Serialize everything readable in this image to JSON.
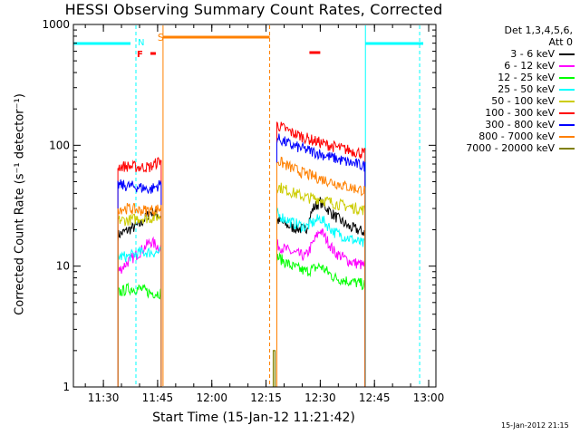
{
  "chart_data": {
    "type": "line",
    "title": "HESSI Observing Summary Count Rates, Corrected",
    "xlabel": "Start Time (15-Jan-12 11:21:42)",
    "ylabel": "Corrected Count Rate (s⁻¹ detector⁻¹)",
    "y_scale": "log",
    "ylim": [
      1,
      1000
    ],
    "y_ticks": [
      {
        "value": 1,
        "label": "1"
      },
      {
        "value": 10,
        "label": "10"
      },
      {
        "value": 100,
        "label": "100"
      },
      {
        "value": 1000,
        "label": "1000"
      }
    ],
    "xlim": [
      "11:21:42",
      "13:02:00"
    ],
    "x_ticks": [
      {
        "value": "11:30",
        "label": "11:30"
      },
      {
        "value": "11:45",
        "label": "11:45"
      },
      {
        "value": "12:00",
        "label": "12:00"
      },
      {
        "value": "12:15",
        "label": "12:15"
      },
      {
        "value": "12:30",
        "label": "12:30"
      },
      {
        "value": "12:45",
        "label": "12:45"
      },
      {
        "value": "13:00",
        "label": "13:00"
      }
    ],
    "legend": {
      "placement": "right",
      "header": [
        "Det 1,3,4,5,6,",
        "Att 0"
      ]
    },
    "series": [
      {
        "name": "3 - 6 keV",
        "color": "#000000",
        "segments": [
          {
            "x": [
              "11:34:00",
              "11:37:00",
              "11:40:00",
              "11:43:00",
              "11:46:00"
            ],
            "y": [
              18,
              20,
              22,
              28,
              26
            ]
          },
          {
            "x": [
              "12:18:00",
              "12:22:00",
              "12:26:00",
              "12:28:00",
              "12:30:00",
              "12:34:00",
              "12:38:00",
              "12:42:30"
            ],
            "y": [
              24,
              21,
              20,
              30,
              34,
              26,
              21,
              19
            ]
          }
        ]
      },
      {
        "name": "6 - 12 keV",
        "color": "#ff00ff",
        "segments": [
          {
            "x": [
              "11:34:00",
              "11:37:00",
              "11:40:00",
              "11:43:00",
              "11:46:00"
            ],
            "y": [
              9,
              11,
              13,
              16,
              14
            ]
          },
          {
            "x": [
              "12:18:00",
              "12:22:00",
              "12:26:00",
              "12:30:00",
              "12:34:00",
              "12:38:00",
              "12:42:30"
            ],
            "y": [
              15,
              13,
              12,
              20,
              13,
              11,
              10
            ]
          }
        ]
      },
      {
        "name": "12 - 25 keV",
        "color": "#00ff00",
        "segments": [
          {
            "x": [
              "11:34:00",
              "11:37:00",
              "11:40:00",
              "11:43:00",
              "11:46:00"
            ],
            "y": [
              6,
              6.5,
              6.5,
              6,
              6
            ]
          },
          {
            "x": [
              "12:18:00",
              "12:22:00",
              "12:26:00",
              "12:30:00",
              "12:34:00",
              "12:38:00",
              "12:42:30"
            ],
            "y": [
              12,
              10,
              9,
              10,
              8,
              7.5,
              7
            ]
          }
        ]
      },
      {
        "name": "25 - 50 keV",
        "color": "#00ffff",
        "segments": [
          {
            "x": [
              "11:34:00",
              "11:37:00",
              "11:40:00",
              "11:43:00",
              "11:46:00"
            ],
            "y": [
              12,
              12,
              13,
              13,
              13
            ]
          },
          {
            "x": [
              "12:18:00",
              "12:22:00",
              "12:26:00",
              "12:30:00",
              "12:34:00",
              "12:38:00",
              "12:42:30"
            ],
            "y": [
              27,
              23,
              21,
              25,
              19,
              17,
              15
            ]
          }
        ]
      },
      {
        "name": "50 - 100 keV",
        "color": "#cccc00",
        "segments": [
          {
            "x": [
              "11:34:00",
              "11:37:00",
              "11:40:00",
              "11:43:00",
              "11:46:00"
            ],
            "y": [
              24,
              24,
              25,
              25,
              26
            ]
          },
          {
            "x": [
              "12:18:00",
              "12:22:00",
              "12:26:00",
              "12:30:00",
              "12:34:00",
              "12:38:00",
              "12:42:30"
            ],
            "y": [
              46,
              41,
              37,
              36,
              33,
              31,
              29
            ]
          }
        ]
      },
      {
        "name": "100 - 300 keV",
        "color": "#ff0000",
        "segments": [
          {
            "x": [
              "11:34:00",
              "11:37:00",
              "11:40:00",
              "11:43:00",
              "11:46:00"
            ],
            "y": [
              67,
              67,
              66,
              66,
              76
            ]
          },
          {
            "x": [
              "12:18:00",
              "12:22:00",
              "12:26:00",
              "12:30:00",
              "12:34:00",
              "12:38:00",
              "12:42:30"
            ],
            "y": [
              148,
              128,
              115,
              105,
              97,
              91,
              85
            ]
          }
        ]
      },
      {
        "name": "300 - 800 keV",
        "color": "#0000ff",
        "segments": [
          {
            "x": [
              "11:34:00",
              "11:37:00",
              "11:40:00",
              "11:43:00",
              "11:46:00"
            ],
            "y": [
              47,
              46,
              45,
              43,
              48
            ]
          },
          {
            "x": [
              "12:18:00",
              "12:22:00",
              "12:26:00",
              "12:30:00",
              "12:34:00",
              "12:38:00",
              "12:42:30"
            ],
            "y": [
              115,
              100,
              92,
              85,
              78,
              72,
              67
            ]
          }
        ]
      },
      {
        "name": "800 - 7000 keV",
        "color": "#ff8000",
        "segments": [
          {
            "x": [
              "11:34:00",
              "11:37:00",
              "11:40:00",
              "11:43:00",
              "11:46:00"
            ],
            "y": [
              30,
              30,
              29,
              29,
              30
            ]
          },
          {
            "x": [
              "12:18:00",
              "12:22:00",
              "12:26:00",
              "12:30:00",
              "12:34:00",
              "12:38:00",
              "12:42:30"
            ],
            "y": [
              75,
              65,
              58,
              53,
              49,
              45,
              42
            ]
          }
        ]
      },
      {
        "name": "7000 - 20000 keV",
        "color": "#808000",
        "segments": [
          {
            "x": [
              "12:17:00",
              "12:17:30"
            ],
            "y": [
              2,
              2
            ]
          }
        ]
      }
    ],
    "annotations": {
      "S_label": {
        "text": "S",
        "color": "#ff8000"
      },
      "N_label": {
        "text": "N",
        "color": "#00ffff"
      },
      "F_label": {
        "text": "F",
        "color": "#ff0000"
      }
    }
  },
  "footer": "15-Jan-2012 21:15"
}
